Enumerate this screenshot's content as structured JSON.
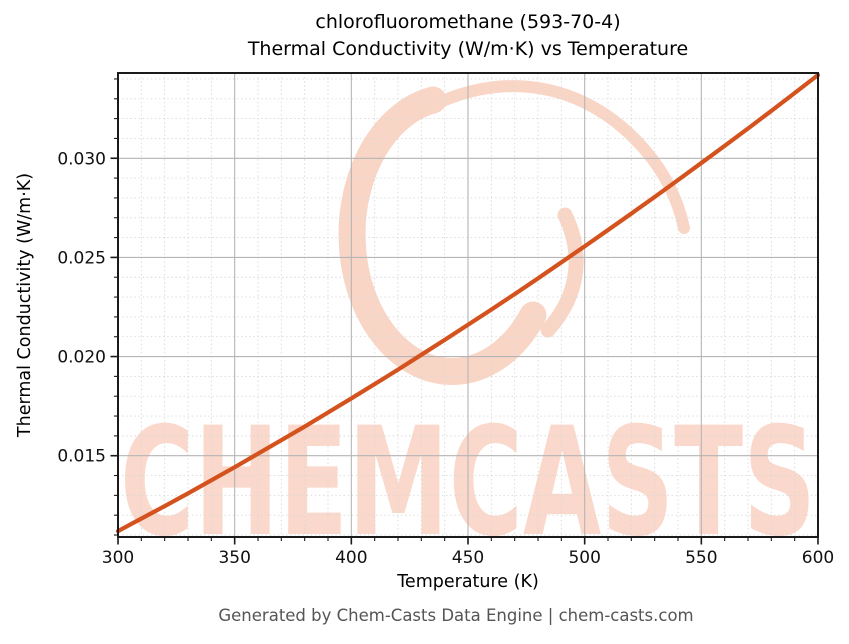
{
  "header": {
    "title_line1": "chlorofluoromethane (593-70-4)",
    "title_line2": "Thermal Conductivity (W/m·K) vs Temperature"
  },
  "footer": {
    "text": "Generated by Chem-Casts Data Engine | chem-casts.com"
  },
  "watermark": {
    "text": "CHEMCASTS",
    "logo": "brush-circle-swirl",
    "text_color": "#fad8cb",
    "swirl_color": "#f9d5c6"
  },
  "colors": {
    "curve": "#d4521d",
    "grid_major": "#b5b5b5",
    "grid_minor": "#d9d9d9",
    "axis": "#1a1a1a",
    "tick_label": "#111111",
    "footer_text": "#555555"
  },
  "chart_data": {
    "type": "line",
    "title": "chlorofluoromethane (593-70-4) — Thermal Conductivity (W/m·K) vs Temperature",
    "xlabel": "Temperature (K)",
    "ylabel": "Thermal Conductivity (W/m·K)",
    "series_name": "thermal conductivity",
    "x": [
      300,
      310,
      320,
      330,
      340,
      350,
      360,
      370,
      380,
      390,
      400,
      410,
      420,
      430,
      440,
      450,
      460,
      470,
      480,
      490,
      500,
      510,
      520,
      530,
      540,
      550,
      560,
      570,
      580,
      590,
      600
    ],
    "y": [
      0.0112,
      0.01183,
      0.01246,
      0.0131,
      0.01376,
      0.01442,
      0.0151,
      0.01578,
      0.01647,
      0.01718,
      0.01789,
      0.01861,
      0.01934,
      0.02009,
      0.02084,
      0.0216,
      0.02237,
      0.02315,
      0.02394,
      0.02475,
      0.02556,
      0.02638,
      0.02721,
      0.02805,
      0.0289,
      0.02976,
      0.03063,
      0.0315,
      0.03239,
      0.03329,
      0.0342
    ],
    "xlim": [
      300,
      600
    ],
    "ylim": [
      0.0109,
      0.0343
    ],
    "x_major_ticks": [
      300,
      350,
      400,
      450,
      500,
      550,
      600
    ],
    "x_tick_labels": [
      "300",
      "350",
      "400",
      "450",
      "500",
      "550",
      "600"
    ],
    "y_major_ticks": [
      0.015,
      0.02,
      0.025,
      0.03
    ],
    "y_tick_labels": [
      "0.015",
      "0.020",
      "0.025",
      "0.030"
    ],
    "x_minor_step": 10,
    "y_minor_step": 0.001,
    "grid": true,
    "grid_minor_dashed": true,
    "legend": "none",
    "line_width": 4.2
  }
}
